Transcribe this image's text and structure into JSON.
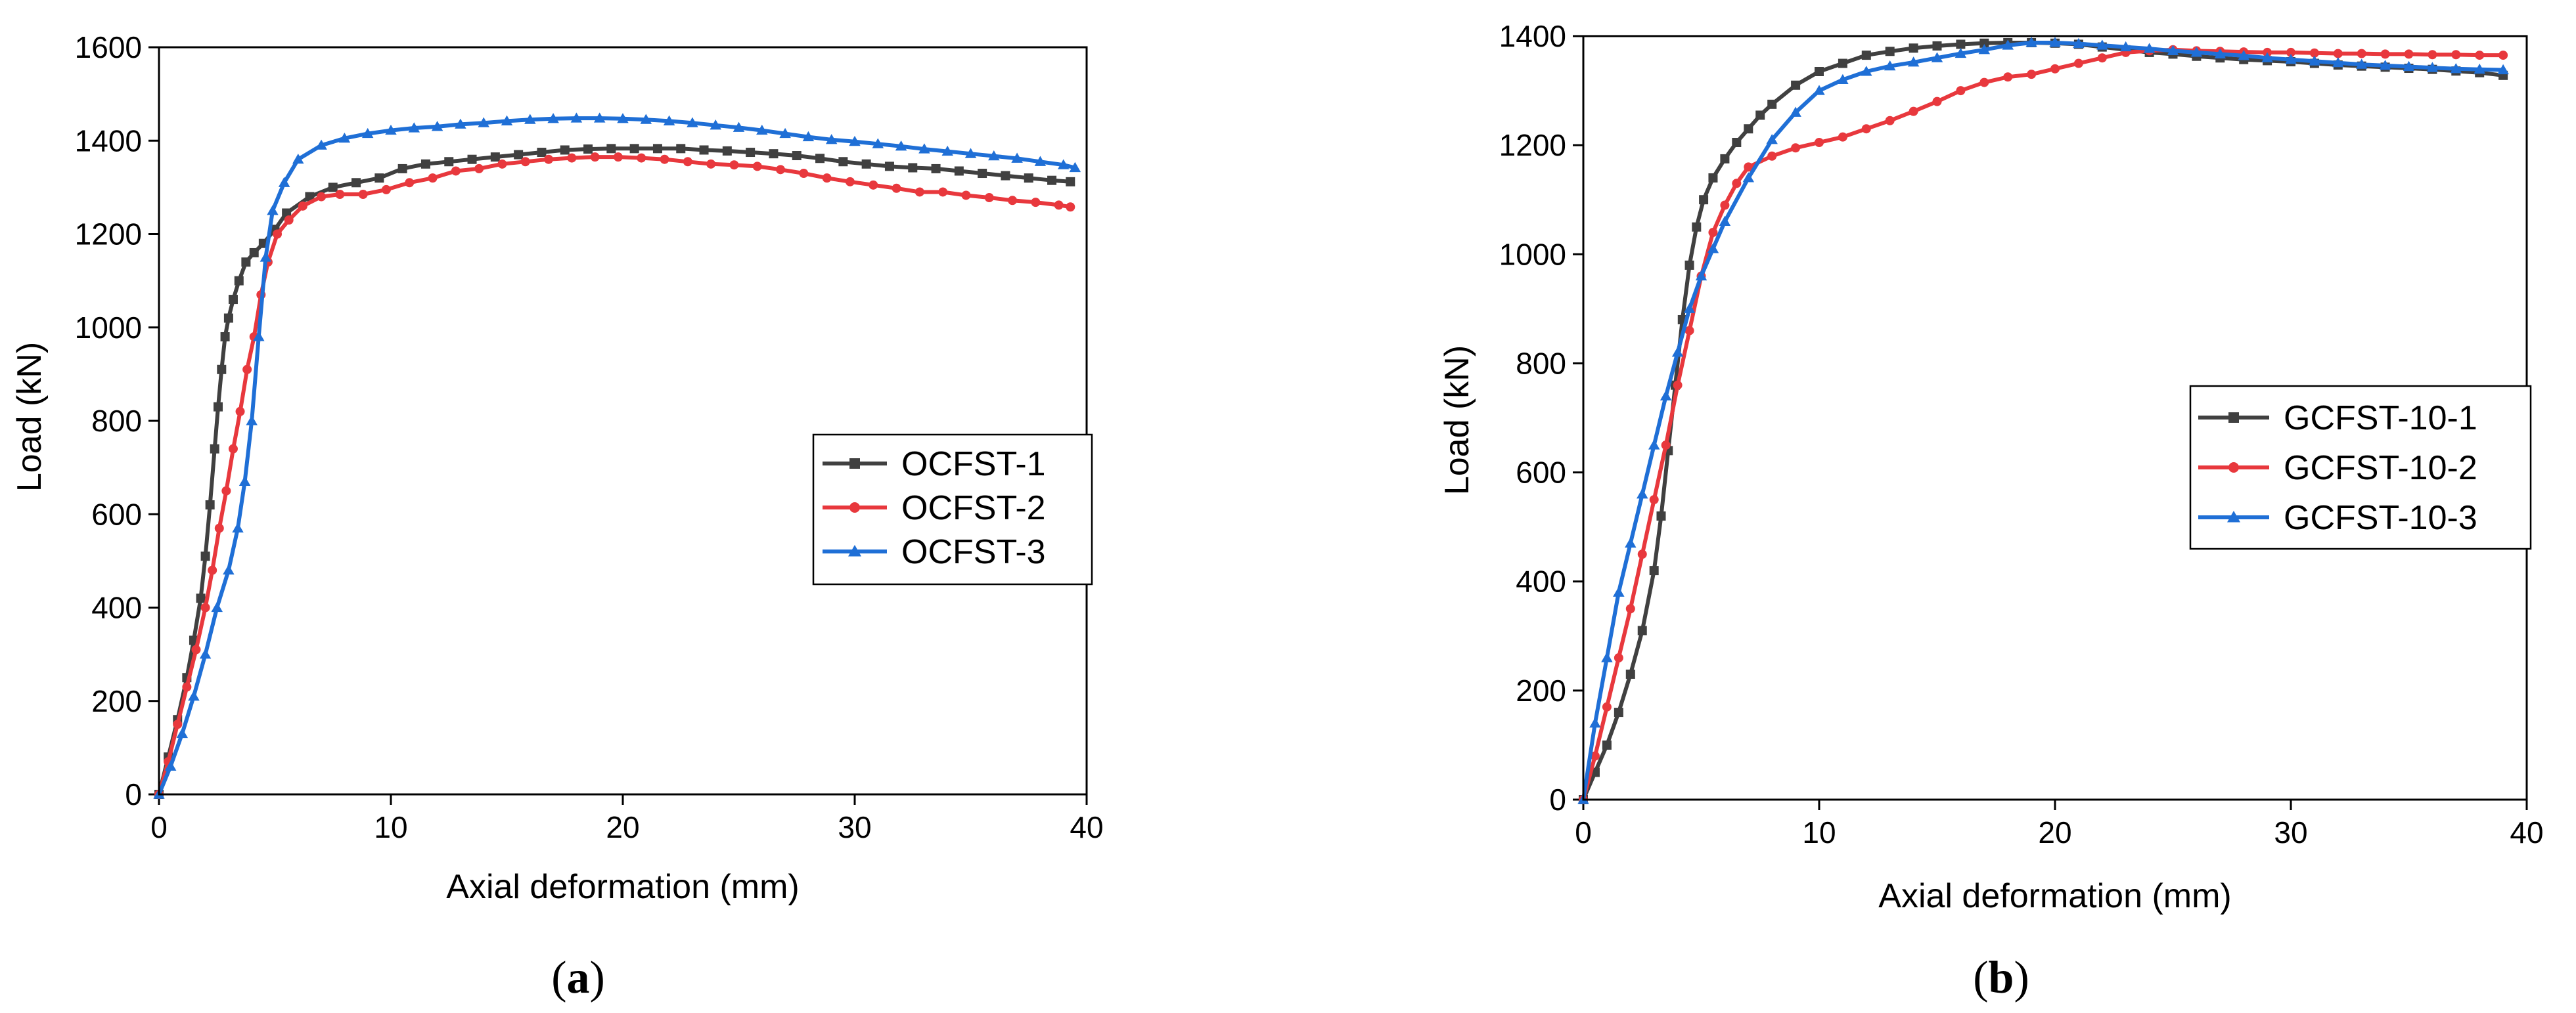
{
  "chart_data": [
    {
      "type": "line",
      "panel": "a",
      "caption_open": "(",
      "caption_letter": "a",
      "caption_close": ")",
      "xlabel": "Axial deformation (mm)",
      "ylabel": "Load (kN)",
      "xlim": [
        0,
        40
      ],
      "ylim": [
        0,
        1600
      ],
      "xticks": [
        0,
        10,
        20,
        30,
        40
      ],
      "yticks": [
        0,
        200,
        400,
        600,
        800,
        1000,
        1200,
        1400,
        1600
      ],
      "xtick_labels": [
        "0",
        "10",
        "20",
        "30",
        "40"
      ],
      "ytick_labels": [
        "0",
        "200",
        "400",
        "600",
        "800",
        "1000",
        "1200",
        "1400",
        "1600"
      ],
      "grid": false,
      "legend_position": "right-middle",
      "series": [
        {
          "name": "OCFST-1",
          "color": "#404040",
          "marker": "square",
          "x": [
            0,
            0.4,
            0.8,
            1.2,
            1.5,
            1.8,
            2.0,
            2.2,
            2.4,
            2.55,
            2.7,
            2.85,
            3.0,
            3.2,
            3.45,
            3.75,
            4.1,
            4.5,
            5.0,
            5.5,
            6.5,
            7.5,
            8.5,
            9.5,
            10.5,
            11.5,
            12.5,
            13.5,
            14.5,
            15.5,
            16.5,
            17.5,
            18.5,
            19.5,
            20.5,
            21.5,
            22.5,
            23.5,
            24.5,
            25.5,
            26.5,
            27.5,
            28.5,
            29.5,
            30.5,
            31.5,
            32.5,
            33.5,
            34.5,
            35.5,
            36.5,
            37.5,
            38.5,
            39.3
          ],
          "y": [
            0,
            80,
            160,
            250,
            330,
            420,
            510,
            620,
            740,
            830,
            910,
            980,
            1020,
            1060,
            1100,
            1140,
            1160,
            1180,
            1210,
            1245,
            1280,
            1300,
            1310,
            1320,
            1340,
            1350,
            1355,
            1360,
            1365,
            1370,
            1375,
            1380,
            1382,
            1383,
            1383,
            1383,
            1383,
            1380,
            1378,
            1375,
            1372,
            1368,
            1362,
            1355,
            1350,
            1345,
            1342,
            1340,
            1335,
            1330,
            1325,
            1320,
            1315,
            1312
          ]
        },
        {
          "name": "OCFST-2",
          "color": "#e8383d",
          "marker": "circle",
          "x": [
            0,
            0.4,
            0.8,
            1.2,
            1.6,
            2.0,
            2.3,
            2.6,
            2.9,
            3.2,
            3.5,
            3.8,
            4.1,
            4.4,
            4.7,
            5.1,
            5.6,
            6.2,
            7.0,
            7.8,
            8.8,
            9.8,
            10.8,
            11.8,
            12.8,
            13.8,
            14.8,
            15.8,
            16.8,
            17.8,
            18.8,
            19.8,
            20.8,
            21.8,
            22.8,
            23.8,
            24.8,
            25.8,
            26.8,
            27.8,
            28.8,
            29.8,
            30.8,
            31.8,
            32.8,
            33.8,
            34.8,
            35.8,
            36.8,
            37.8,
            38.8,
            39.3
          ],
          "y": [
            0,
            70,
            150,
            230,
            310,
            400,
            480,
            570,
            650,
            740,
            820,
            910,
            980,
            1070,
            1140,
            1200,
            1230,
            1260,
            1280,
            1285,
            1285,
            1295,
            1310,
            1320,
            1335,
            1340,
            1350,
            1355,
            1360,
            1363,
            1365,
            1365,
            1363,
            1360,
            1355,
            1350,
            1348,
            1345,
            1338,
            1330,
            1320,
            1312,
            1305,
            1298,
            1290,
            1290,
            1283,
            1278,
            1272,
            1268,
            1262,
            1258
          ]
        },
        {
          "name": "OCFST-3",
          "color": "#1f6fd6",
          "marker": "triangle",
          "x": [
            0,
            0.5,
            1.0,
            1.5,
            2.0,
            2.5,
            3.0,
            3.4,
            3.7,
            4.0,
            4.3,
            4.6,
            4.9,
            5.4,
            6.0,
            7.0,
            8.0,
            9.0,
            10.0,
            11.0,
            12.0,
            13.0,
            14.0,
            15.0,
            16.0,
            17.0,
            18.0,
            19.0,
            20.0,
            21.0,
            22.0,
            23.0,
            24.0,
            25.0,
            26.0,
            27.0,
            28.0,
            29.0,
            30.0,
            31.0,
            32.0,
            33.0,
            34.0,
            35.0,
            36.0,
            37.0,
            38.0,
            39.0,
            39.5
          ],
          "y": [
            0,
            60,
            130,
            210,
            300,
            400,
            480,
            570,
            670,
            800,
            980,
            1150,
            1250,
            1310,
            1360,
            1390,
            1405,
            1415,
            1422,
            1427,
            1430,
            1435,
            1438,
            1442,
            1445,
            1447,
            1448,
            1448,
            1447,
            1445,
            1442,
            1438,
            1433,
            1428,
            1422,
            1415,
            1408,
            1402,
            1398,
            1393,
            1388,
            1382,
            1377,
            1372,
            1367,
            1362,
            1355,
            1348,
            1342
          ]
        }
      ]
    },
    {
      "type": "line",
      "panel": "b",
      "caption_open": "(",
      "caption_letter": "b",
      "caption_close": ")",
      "xlabel": "Axial deformation (mm)",
      "ylabel": "Load (kN)",
      "xlim": [
        0,
        40
      ],
      "ylim": [
        0,
        1400
      ],
      "xticks": [
        0,
        10,
        20,
        30,
        40
      ],
      "yticks": [
        0,
        200,
        400,
        600,
        800,
        1000,
        1200,
        1400
      ],
      "xtick_labels": [
        "0",
        "10",
        "20",
        "30",
        "40"
      ],
      "ytick_labels": [
        "0",
        "200",
        "400",
        "600",
        "800",
        "1000",
        "1200",
        "1400"
      ],
      "grid": false,
      "legend_position": "right-middle",
      "series": [
        {
          "name": "GCFST-10-1",
          "color": "#404040",
          "marker": "square",
          "x": [
            0,
            0.5,
            1.0,
            1.5,
            2.0,
            2.5,
            3.0,
            3.3,
            3.6,
            3.9,
            4.2,
            4.5,
            4.8,
            5.1,
            5.5,
            6.0,
            6.5,
            7.0,
            7.5,
            8.0,
            9.0,
            10.0,
            11.0,
            12.0,
            13.0,
            14.0,
            15.0,
            16.0,
            17.0,
            18.0,
            19.0,
            20.0,
            21.0,
            22.0,
            23.0,
            24.0,
            25.0,
            26.0,
            27.0,
            28.0,
            29.0,
            30.0,
            31.0,
            32.0,
            33.0,
            34.0,
            35.0,
            36.0,
            37.0,
            38.0,
            39.0
          ],
          "y": [
            0,
            50,
            100,
            160,
            230,
            310,
            420,
            520,
            640,
            760,
            880,
            980,
            1050,
            1100,
            1140,
            1175,
            1205,
            1230,
            1255,
            1275,
            1310,
            1335,
            1350,
            1365,
            1372,
            1378,
            1382,
            1385,
            1387,
            1388,
            1388,
            1387,
            1385,
            1380,
            1375,
            1370,
            1367,
            1363,
            1360,
            1357,
            1355,
            1353,
            1350,
            1347,
            1345,
            1343,
            1341,
            1339,
            1336,
            1333,
            1328
          ]
        },
        {
          "name": "GCFST-10-2",
          "color": "#e8383d",
          "marker": "circle",
          "x": [
            0,
            0.5,
            1.0,
            1.5,
            2.0,
            2.5,
            3.0,
            3.5,
            4.0,
            4.5,
            5.0,
            5.5,
            6.0,
            6.5,
            7.0,
            8.0,
            9.0,
            10.0,
            11.0,
            12.0,
            13.0,
            14.0,
            15.0,
            16.0,
            17.0,
            18.0,
            19.0,
            20.0,
            21.0,
            22.0,
            23.0,
            24.0,
            25.0,
            26.0,
            27.0,
            28.0,
            29.0,
            30.0,
            31.0,
            32.0,
            33.0,
            34.0,
            35.0,
            36.0,
            37.0,
            38.0,
            39.0
          ],
          "y": [
            0,
            80,
            170,
            260,
            350,
            450,
            550,
            650,
            760,
            860,
            960,
            1040,
            1090,
            1130,
            1160,
            1180,
            1195,
            1205,
            1215,
            1230,
            1245,
            1262,
            1280,
            1300,
            1315,
            1325,
            1330,
            1340,
            1350,
            1360,
            1370,
            1373,
            1375,
            1373,
            1372,
            1371,
            1370,
            1370,
            1369,
            1368,
            1368,
            1367,
            1367,
            1366,
            1366,
            1365,
            1365
          ]
        },
        {
          "name": "GCFST-10-3",
          "color": "#1f6fd6",
          "marker": "triangle",
          "x": [
            0,
            0.5,
            1.0,
            1.5,
            2.0,
            2.5,
            3.0,
            3.5,
            4.0,
            4.5,
            5.0,
            5.5,
            6.0,
            7.0,
            8.0,
            9.0,
            10.0,
            11.0,
            12.0,
            13.0,
            14.0,
            15.0,
            16.0,
            17.0,
            18.0,
            19.0,
            20.0,
            21.0,
            22.0,
            23.0,
            24.0,
            25.0,
            26.0,
            27.0,
            28.0,
            29.0,
            30.0,
            31.0,
            32.0,
            33.0,
            34.0,
            35.0,
            36.0,
            37.0,
            38.0,
            39.0
          ],
          "y": [
            0,
            140,
            260,
            380,
            470,
            560,
            650,
            740,
            820,
            900,
            960,
            1010,
            1060,
            1140,
            1210,
            1260,
            1300,
            1320,
            1335,
            1345,
            1352,
            1360,
            1368,
            1375,
            1383,
            1388,
            1388,
            1386,
            1383,
            1380,
            1377,
            1373,
            1370,
            1367,
            1364,
            1360,
            1357,
            1354,
            1351,
            1348,
            1346,
            1344,
            1342,
            1340,
            1339,
            1338
          ]
        }
      ]
    }
  ]
}
